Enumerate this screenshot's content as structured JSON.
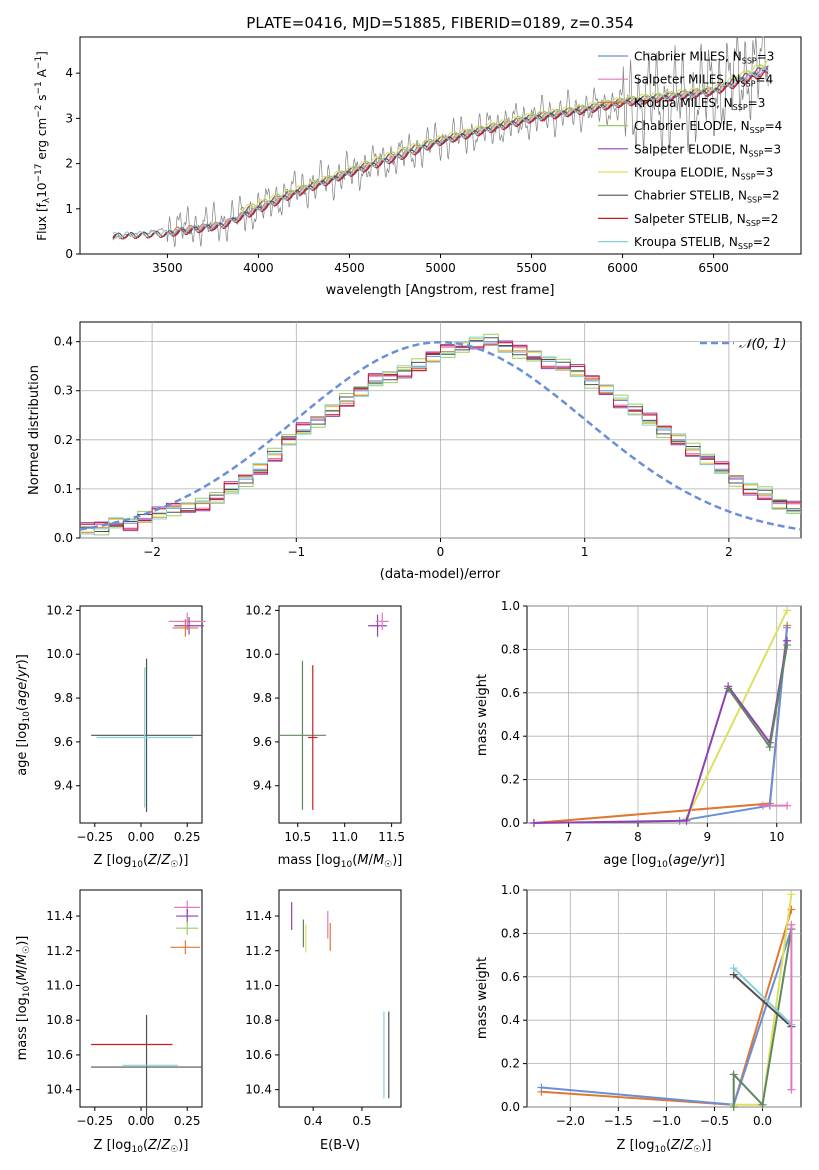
{
  "title": "PLATE=0416, MJD=51885, FIBERID=0189, z=0.354",
  "palette": [
    "#6a8fd8",
    "#e377c2",
    "#e07830",
    "#98d060",
    "#9040b0",
    "#dde060",
    "#505050",
    "#c82020",
    "#88d0d8",
    "#608860",
    "#40b0b0"
  ],
  "chart_data": [
    {
      "id": "spectrum",
      "type": "line",
      "xlabel": "wavelength [Angstrom, rest frame]",
      "ylabel": "Flux [f_λ10^-17 erg cm^-2 s^-1 A^-1]",
      "xlim": [
        3020,
        6980
      ],
      "ylim": [
        0,
        4.8
      ],
      "xticks": [
        3500,
        4000,
        4500,
        5000,
        5500,
        6000,
        6500
      ],
      "yticks": [
        0,
        1,
        2,
        3,
        4
      ],
      "legend_position": "top-right",
      "observed": {
        "color": "#808080",
        "x": [
          3200,
          3500,
          3800,
          4000,
          4200,
          4500,
          4800,
          5000,
          5200,
          5500,
          5800,
          6000,
          6300,
          6500,
          6800
        ],
        "y": [
          0.35,
          0.55,
          0.7,
          1.0,
          1.4,
          1.8,
          2.2,
          2.5,
          2.7,
          3.0,
          3.2,
          3.3,
          3.4,
          3.6,
          4.3
        ]
      },
      "models": [
        {
          "name": "Chabrier MILES",
          "nssp": "3",
          "color": "#6a8fd8",
          "x": [
            3520,
            3800,
            4000,
            4200,
            4500,
            4800,
            5000,
            5200,
            5500,
            5800,
            6000,
            6300,
            6500,
            6800
          ],
          "y": [
            0.5,
            0.65,
            1.0,
            1.35,
            1.8,
            2.2,
            2.5,
            2.7,
            3.0,
            3.2,
            3.35,
            3.5,
            3.6,
            4.1
          ]
        },
        {
          "name": "Salpeter MILES",
          "nssp": "4",
          "color": "#e377c2",
          "x": [
            3520,
            3800,
            4000,
            4200,
            4500,
            4800,
            5000,
            5200,
            5500,
            5800,
            6000,
            6300,
            6500,
            6800
          ],
          "y": [
            0.48,
            0.63,
            0.98,
            1.33,
            1.78,
            2.18,
            2.48,
            2.68,
            2.98,
            3.18,
            3.33,
            3.48,
            3.58,
            4.05
          ]
        },
        {
          "name": "Kroupa MILES",
          "nssp": "3",
          "color": "#e07830",
          "x": [
            3520,
            3800,
            4000,
            4200,
            4500,
            4800,
            5000,
            5200,
            5500,
            5800,
            6000,
            6300,
            6500,
            6800
          ],
          "y": [
            0.52,
            0.66,
            1.02,
            1.37,
            1.82,
            2.22,
            2.52,
            2.72,
            3.02,
            3.22,
            3.37,
            3.52,
            3.62,
            4.12
          ]
        },
        {
          "name": "Chabrier ELODIE",
          "nssp": "4",
          "color": "#98d060",
          "x": [
            3900,
            4200,
            4500,
            4800,
            5000,
            5200,
            5500,
            5800,
            6000,
            6300,
            6500,
            6800
          ],
          "y": [
            0.95,
            1.4,
            1.85,
            2.3,
            2.55,
            2.75,
            3.05,
            3.25,
            3.4,
            3.55,
            3.65,
            4.2
          ]
        },
        {
          "name": "Salpeter ELODIE",
          "nssp": "3",
          "color": "#9040b0",
          "x": [
            3900,
            4200,
            4500,
            4800,
            5000,
            5200,
            5500,
            5800,
            6000,
            6300,
            6500,
            6800
          ],
          "y": [
            0.93,
            1.38,
            1.83,
            2.28,
            2.53,
            2.73,
            3.03,
            3.23,
            3.38,
            3.53,
            3.63,
            4.15
          ]
        },
        {
          "name": "Kroupa ELODIE",
          "nssp": "3",
          "color": "#dde060",
          "x": [
            3900,
            4200,
            4500,
            4800,
            5000,
            5200,
            5500,
            5800,
            6000,
            6300,
            6500,
            6800
          ],
          "y": [
            0.97,
            1.42,
            1.87,
            2.32,
            2.57,
            2.77,
            3.07,
            3.27,
            3.42,
            3.57,
            3.67,
            4.25
          ]
        },
        {
          "name": "Chabrier STELIB",
          "nssp": "2",
          "color": "#505050",
          "x": [
            3200,
            3500,
            3800,
            4000,
            4200,
            4500,
            4800,
            5000,
            5200,
            5500,
            5800,
            6000,
            6300,
            6500,
            6800
          ],
          "y": [
            0.4,
            0.45,
            0.62,
            0.98,
            1.33,
            1.78,
            2.18,
            2.48,
            2.68,
            2.98,
            3.18,
            3.33,
            3.48,
            3.58,
            4.05
          ]
        },
        {
          "name": "Salpeter STELIB",
          "nssp": "2",
          "color": "#c82020",
          "x": [
            3200,
            3500,
            3800,
            4000,
            4200,
            4500,
            4800,
            5000,
            5200,
            5500,
            5800,
            6000,
            6300,
            6500,
            6800
          ],
          "y": [
            0.38,
            0.43,
            0.6,
            0.96,
            1.31,
            1.76,
            2.16,
            2.46,
            2.66,
            2.96,
            3.16,
            3.31,
            3.46,
            3.56,
            4.0
          ]
        },
        {
          "name": "Kroupa STELIB",
          "nssp": "2",
          "color": "#88d0d8",
          "x": [
            3200,
            3500,
            3800,
            4000,
            4200,
            4500,
            4800,
            5000,
            5200,
            5500,
            5800,
            6000,
            6300,
            6500,
            6800
          ],
          "y": [
            0.42,
            0.46,
            0.64,
            1.0,
            1.35,
            1.8,
            2.2,
            2.5,
            2.7,
            3.0,
            3.2,
            3.35,
            3.5,
            3.6,
            4.1
          ]
        }
      ]
    },
    {
      "id": "residuals",
      "type": "line",
      "xlabel": "(data-model)/error",
      "ylabel": "Normed distribution",
      "xlim": [
        -2.5,
        2.5
      ],
      "ylim": [
        0,
        0.44
      ],
      "xticks": [
        -2,
        -1,
        0,
        1,
        2
      ],
      "yticks": [
        0.0,
        0.1,
        0.2,
        0.3,
        0.4
      ],
      "grid": true,
      "legend_position": "top-right",
      "normal_label": "𝒩(0, 1)",
      "normal_color": "#6a8fd8",
      "hist_bin_width": 0.1,
      "hist_base": [
        0.02,
        0.02,
        0.03,
        0.03,
        0.04,
        0.05,
        0.06,
        0.06,
        0.07,
        0.08,
        0.1,
        0.12,
        0.14,
        0.17,
        0.2,
        0.22,
        0.24,
        0.26,
        0.28,
        0.3,
        0.32,
        0.33,
        0.34,
        0.35,
        0.37,
        0.38,
        0.39,
        0.4,
        0.4,
        0.39,
        0.38,
        0.37,
        0.36,
        0.35,
        0.34,
        0.32,
        0.3,
        0.28,
        0.26,
        0.24,
        0.22,
        0.2,
        0.18,
        0.16,
        0.14,
        0.12,
        0.1,
        0.09,
        0.07,
        0.06
      ],
      "hist_offsets": [
        0,
        0.01,
        -0.01,
        0.015,
        -0.015,
        0.008,
        -0.008,
        0.012,
        -0.012
      ]
    },
    {
      "id": "age-z",
      "type": "scatter",
      "xlabel": "Z [log10(Z/Z☉)]",
      "ylabel": "age [log10(age/yr)]",
      "xlim": [
        -0.33,
        0.33
      ],
      "ylim": [
        9.23,
        10.22
      ],
      "xticks": [
        -0.25,
        0.0,
        0.25
      ],
      "yticks": [
        9.4,
        9.6,
        9.8,
        10.0,
        10.2
      ],
      "points": [
        {
          "x": 0.03,
          "y": 9.63,
          "xerr": 0.3,
          "yerr": 0.35,
          "color": "#505050"
        },
        {
          "x": 0.02,
          "y": 9.62,
          "xerr": 0.26,
          "yerr": 0.32,
          "color": "#88d0d8"
        },
        {
          "x": 0.25,
          "y": 10.15,
          "xerr": 0.1,
          "yerr": 0.04,
          "color": "#e377c2"
        },
        {
          "x": 0.26,
          "y": 10.13,
          "xerr": 0.08,
          "yerr": 0.04,
          "color": "#9040b0"
        },
        {
          "x": 0.24,
          "y": 10.12,
          "xerr": 0.07,
          "yerr": 0.04,
          "color": "#e07830"
        }
      ]
    },
    {
      "id": "age-mass",
      "type": "scatter",
      "xlabel": "mass [log10(M/M☉)]",
      "ylabel": "",
      "xlim": [
        10.3,
        11.6
      ],
      "ylim": [
        9.23,
        10.22
      ],
      "xticks": [
        10.5,
        11.0,
        11.5
      ],
      "yticks": [
        9.4,
        9.6,
        9.8,
        10.0,
        10.2
      ],
      "points": [
        {
          "x": 10.55,
          "y": 9.63,
          "xerr": 0.25,
          "yerr": 0.34,
          "color": "#608860"
        },
        {
          "x": 10.66,
          "y": 9.62,
          "xerr": 0.05,
          "yerr": 0.33,
          "color": "#c82020"
        },
        {
          "x": 11.35,
          "y": 10.13,
          "xerr": 0.1,
          "yerr": 0.05,
          "color": "#9040b0"
        },
        {
          "x": 11.4,
          "y": 10.15,
          "xerr": 0.07,
          "yerr": 0.04,
          "color": "#e377c2"
        }
      ]
    },
    {
      "id": "mass-weight-age",
      "type": "line",
      "xlabel": "age [log10(age/yr)]",
      "ylabel": "mass weight",
      "xlim": [
        6.4,
        10.35
      ],
      "ylim": [
        0,
        1.0
      ],
      "xticks": [
        7,
        8,
        9,
        10
      ],
      "yticks": [
        0.0,
        0.2,
        0.4,
        0.6,
        0.8,
        1.0
      ],
      "grid": true,
      "series": [
        {
          "color": "#e07830",
          "x": [
            6.5,
            9.9,
            10.15
          ],
          "y": [
            0.0,
            0.09,
            0.91
          ]
        },
        {
          "color": "#6a8fd8",
          "x": [
            8.6,
            9.9,
            10.15
          ],
          "y": [
            0.01,
            0.08,
            0.9
          ]
        },
        {
          "color": "#dde060",
          "x": [
            8.7,
            10.15
          ],
          "y": [
            0.02,
            0.98
          ]
        },
        {
          "color": "#9040b0",
          "x": [
            6.5,
            8.7,
            9.3,
            9.9,
            10.15
          ],
          "y": [
            0.0,
            0.01,
            0.63,
            0.37,
            0.84
          ]
        },
        {
          "color": "#608860",
          "x": [
            9.3,
            9.9,
            10.15
          ],
          "y": [
            0.62,
            0.35,
            0.82
          ]
        },
        {
          "color": "#e377c2",
          "x": [
            9.8,
            10.15
          ],
          "y": [
            0.08,
            0.08
          ]
        }
      ]
    },
    {
      "id": "mass-z",
      "type": "scatter",
      "xlabel": "Z [log10(Z/Z☉)]",
      "ylabel": "mass [log10(M/M☉)]",
      "xlim": [
        -0.33,
        0.33
      ],
      "ylim": [
        10.3,
        11.55
      ],
      "xticks": [
        -0.25,
        0.0,
        0.25
      ],
      "yticks": [
        10.4,
        10.6,
        10.8,
        11.0,
        11.2,
        11.4
      ],
      "points": [
        {
          "x": 0.03,
          "y": 10.53,
          "xerr": 0.3,
          "yerr": 0.3,
          "color": "#505050"
        },
        {
          "x": -0.05,
          "y": 10.66,
          "xerr": 0.22,
          "yerr": 0.0,
          "color": "#c82020"
        },
        {
          "x": 0.05,
          "y": 10.54,
          "xerr": 0.15,
          "yerr": 0.0,
          "color": "#88d0d8"
        },
        {
          "x": 0.25,
          "y": 11.45,
          "xerr": 0.07,
          "yerr": 0.04,
          "color": "#e377c2"
        },
        {
          "x": 0.25,
          "y": 11.4,
          "xerr": 0.06,
          "yerr": 0.04,
          "color": "#9040b0"
        },
        {
          "x": 0.25,
          "y": 11.33,
          "xerr": 0.06,
          "yerr": 0.04,
          "color": "#98d060"
        },
        {
          "x": 0.24,
          "y": 11.22,
          "xerr": 0.08,
          "yerr": 0.04,
          "color": "#e07830"
        }
      ]
    },
    {
      "id": "mass-ebv",
      "type": "scatter",
      "xlabel": "E(B-V)",
      "ylabel": "",
      "xlim": [
        0.33,
        0.58
      ],
      "ylim": [
        10.3,
        11.55
      ],
      "xticks": [
        0.4,
        0.5
      ],
      "yticks": [
        10.4,
        10.6,
        10.8,
        11.0,
        11.2,
        11.4
      ],
      "points": [
        {
          "x": 0.356,
          "y": 11.4,
          "xerr": 0.0,
          "yerr": 0.08,
          "color": "#9040b0"
        },
        {
          "x": 0.38,
          "y": 11.3,
          "xerr": 0.0,
          "yerr": 0.08,
          "color": "#608860"
        },
        {
          "x": 0.385,
          "y": 11.27,
          "xerr": 0.0,
          "yerr": 0.08,
          "color": "#dde060"
        },
        {
          "x": 0.43,
          "y": 11.35,
          "xerr": 0.0,
          "yerr": 0.08,
          "color": "#e377c2"
        },
        {
          "x": 0.435,
          "y": 11.28,
          "xerr": 0.0,
          "yerr": 0.08,
          "color": "#e07830"
        },
        {
          "x": 0.545,
          "y": 10.6,
          "xerr": 0.0,
          "yerr": 0.25,
          "color": "#88d0d8"
        },
        {
          "x": 0.555,
          "y": 10.6,
          "xerr": 0.0,
          "yerr": 0.25,
          "color": "#505050"
        }
      ]
    },
    {
      "id": "mass-weight-z",
      "type": "line",
      "xlabel": "Z [log10(Z/Z☉)]",
      "ylabel": "mass weight",
      "xlim": [
        -2.45,
        0.4
      ],
      "ylim": [
        0,
        1.0
      ],
      "xticks": [
        -2.0,
        -1.5,
        -1.0,
        -0.5,
        0.0
      ],
      "yticks": [
        0.0,
        0.2,
        0.4,
        0.6,
        0.8,
        1.0
      ],
      "grid": true,
      "series": [
        {
          "color": "#e07830",
          "x": [
            -2.3,
            -0.3,
            0.3
          ],
          "y": [
            0.07,
            0.01,
            0.91
          ]
        },
        {
          "color": "#6a8fd8",
          "x": [
            -2.3,
            -0.3,
            0.3
          ],
          "y": [
            0.09,
            0.01,
            0.82
          ]
        },
        {
          "color": "#dde060",
          "x": [
            -0.3,
            0.0,
            0.3
          ],
          "y": [
            0.01,
            0.01,
            0.98
          ]
        },
        {
          "color": "#608860",
          "x": [
            -0.3,
            -0.3,
            0.0,
            0.3
          ],
          "y": [
            0.0,
            0.15,
            0.01,
            0.82
          ]
        },
        {
          "color": "#505050",
          "x": [
            -0.3,
            0.3
          ],
          "y": [
            0.61,
            0.37
          ]
        },
        {
          "color": "#88d0d8",
          "x": [
            -0.3,
            0.3
          ],
          "y": [
            0.64,
            0.38
          ]
        },
        {
          "color": "#e377c2",
          "x": [
            0.3,
            0.3
          ],
          "y": [
            0.08,
            0.84
          ]
        }
      ]
    }
  ]
}
